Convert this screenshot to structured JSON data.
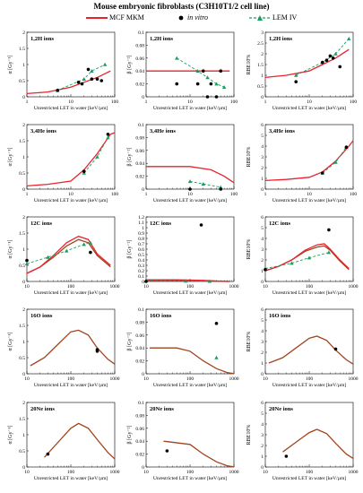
{
  "figure": {
    "title": "Mouse embryonic fibroblasts (C3H10T1/2 cell line)",
    "legend": {
      "mkm": "MCF MKM",
      "invitro": "in vitro",
      "lem": "LEM IV"
    },
    "colors": {
      "mkm": "#e8232e",
      "lem": "#1a9e60",
      "invitro": "#000000",
      "brown": "#a0451e"
    },
    "xlabel": "Unrestricted LET in water [keV/µm]",
    "ylabels": {
      "alpha": "α [Gy⁻¹]",
      "beta": "β [Gy⁻²]",
      "rbe": "RBE10%"
    }
  },
  "chart_data": [
    {
      "type": "line",
      "row": 0,
      "col": 0,
      "ion": "1,2H ions",
      "xlim": [
        1,
        100
      ],
      "ylim": [
        0,
        2
      ],
      "yticks": [
        0,
        0.5,
        1,
        1.5,
        2
      ],
      "xlog": true,
      "mkm": [
        [
          1,
          0.1
        ],
        [
          3,
          0.15
        ],
        [
          10,
          0.3
        ],
        [
          20,
          0.45
        ],
        [
          40,
          0.6
        ],
        [
          80,
          0.8
        ]
      ],
      "lem": [
        [
          5,
          0.2
        ],
        [
          20,
          0.55
        ],
        [
          30,
          0.8
        ],
        [
          60,
          1.0
        ]
      ],
      "invitro": [
        [
          5,
          0.2
        ],
        [
          15,
          0.45
        ],
        [
          18,
          0.4
        ],
        [
          25,
          0.85
        ],
        [
          30,
          0.55
        ],
        [
          40,
          0.55
        ],
        [
          50,
          0.5
        ]
      ]
    },
    {
      "type": "line",
      "row": 0,
      "col": 1,
      "ion": "1,2H ions",
      "xlim": [
        1,
        100
      ],
      "ylim": [
        0,
        0.1
      ],
      "yticks": [
        0,
        0.02,
        0.04,
        0.06,
        0.08,
        0.1
      ],
      "xlog": true,
      "mkm": [
        [
          1,
          0.04
        ],
        [
          10,
          0.04
        ],
        [
          80,
          0.04
        ]
      ],
      "lem": [
        [
          5,
          0.06
        ],
        [
          15,
          0.04
        ],
        [
          25,
          0.03
        ],
        [
          40,
          0.02
        ],
        [
          60,
          0.015
        ]
      ],
      "invitro": [
        [
          5,
          0.02
        ],
        [
          15,
          0.02
        ],
        [
          20,
          0.04
        ],
        [
          25,
          0.0
        ],
        [
          30,
          0.02
        ],
        [
          40,
          0.0
        ],
        [
          50,
          0.04
        ]
      ]
    },
    {
      "type": "line",
      "row": 0,
      "col": 2,
      "ion": "1,2H ions",
      "xlim": [
        1,
        100
      ],
      "ylim": [
        0,
        3
      ],
      "yticks": [
        0,
        0.5,
        1,
        1.5,
        2,
        2.5,
        3
      ],
      "xlog": true,
      "mkm": [
        [
          1,
          0.9
        ],
        [
          3,
          1.0
        ],
        [
          10,
          1.2
        ],
        [
          20,
          1.5
        ],
        [
          40,
          1.8
        ],
        [
          80,
          2.2
        ]
      ],
      "lem": [
        [
          5,
          1.0
        ],
        [
          20,
          1.6
        ],
        [
          40,
          2.0
        ],
        [
          80,
          2.7
        ]
      ],
      "invitro": [
        [
          5,
          0.7
        ],
        [
          20,
          1.6
        ],
        [
          25,
          1.7
        ],
        [
          30,
          1.9
        ],
        [
          35,
          1.8
        ],
        [
          50,
          1.4
        ]
      ]
    },
    {
      "type": "line",
      "row": 1,
      "col": 0,
      "ion": "3,4He ions",
      "xlim": [
        1,
        100
      ],
      "ylim": [
        0,
        2
      ],
      "yticks": [
        0,
        0.5,
        1,
        1.5,
        2
      ],
      "xlog": true,
      "mkm": [
        [
          1,
          0.1
        ],
        [
          3,
          0.15
        ],
        [
          10,
          0.25
        ],
        [
          20,
          0.6
        ],
        [
          40,
          1.1
        ],
        [
          80,
          1.7
        ],
        [
          100,
          1.75
        ]
      ],
      "lem": [
        [
          20,
          0.5
        ],
        [
          40,
          1.0
        ],
        [
          70,
          1.6
        ]
      ],
      "invitro": [
        [
          20,
          0.55
        ],
        [
          70,
          1.7
        ]
      ]
    },
    {
      "type": "line",
      "row": 1,
      "col": 1,
      "ion": "3,4He ions",
      "xlim": [
        1,
        100
      ],
      "ylim": [
        0,
        0.1
      ],
      "yticks": [
        0,
        0.02,
        0.04,
        0.06,
        0.08,
        0.1
      ],
      "xlog": true,
      "mkm": [
        [
          1,
          0.035
        ],
        [
          10,
          0.035
        ],
        [
          30,
          0.03
        ],
        [
          60,
          0.02
        ],
        [
          100,
          0.01
        ]
      ],
      "lem": [
        [
          10,
          0.012
        ],
        [
          20,
          0.008
        ],
        [
          50,
          0.003
        ]
      ],
      "invitro": [
        [
          10,
          0.0
        ],
        [
          50,
          0.0
        ]
      ]
    },
    {
      "type": "line",
      "row": 1,
      "col": 2,
      "ion": "3,4He ions",
      "xlim": [
        1,
        100
      ],
      "ylim": [
        0,
        6
      ],
      "yticks": [
        0,
        1,
        2,
        3,
        4,
        5,
        6
      ],
      "xlog": true,
      "mkm": [
        [
          1,
          0.8
        ],
        [
          3,
          0.9
        ],
        [
          10,
          1.1
        ],
        [
          20,
          1.6
        ],
        [
          40,
          2.6
        ],
        [
          80,
          4.0
        ],
        [
          100,
          4.5
        ]
      ],
      "lem": [
        [
          20,
          1.5
        ],
        [
          40,
          2.5
        ],
        [
          70,
          3.9
        ]
      ],
      "invitro": [
        [
          20,
          1.5
        ],
        [
          70,
          3.9
        ]
      ]
    },
    {
      "type": "line",
      "row": 2,
      "col": 0,
      "ion": "12C ions",
      "xlim": [
        10,
        1000
      ],
      "ylim": [
        0,
        2
      ],
      "yticks": [
        0,
        0.5,
        1,
        1.5,
        2
      ],
      "xlog": true,
      "mkm": [
        [
          10,
          0.25
        ],
        [
          20,
          0.45
        ],
        [
          40,
          0.8
        ],
        [
          80,
          1.2
        ],
        [
          150,
          1.4
        ],
        [
          250,
          1.3
        ],
        [
          400,
          0.85
        ],
        [
          800,
          0.5
        ]
      ],
      "mkm2": [
        [
          10,
          0.25
        ],
        [
          20,
          0.45
        ],
        [
          40,
          0.75
        ],
        [
          80,
          1.1
        ],
        [
          150,
          1.3
        ],
        [
          250,
          1.2
        ],
        [
          400,
          0.8
        ],
        [
          800,
          0.45
        ]
      ],
      "lem": [
        [
          10,
          0.55
        ],
        [
          30,
          0.75
        ],
        [
          80,
          0.95
        ],
        [
          200,
          1.15
        ],
        [
          280,
          1.2
        ]
      ],
      "invitro": [
        [
          10,
          0.65
        ],
        [
          280,
          0.9
        ]
      ]
    },
    {
      "type": "line",
      "row": 2,
      "col": 1,
      "ion": "12C ions",
      "xlim": [
        10,
        1000
      ],
      "ylim": [
        0,
        1.2
      ],
      "yticks": [
        0,
        0.1,
        0.2,
        0.3,
        0.4,
        0.5,
        0.6,
        0.7,
        0.8,
        0.9,
        1,
        1.1,
        1.2
      ],
      "xlog": true,
      "mkm": [
        [
          10,
          0.03
        ],
        [
          50,
          0.03
        ],
        [
          200,
          0.02
        ],
        [
          500,
          0.005
        ],
        [
          800,
          0.0
        ]
      ],
      "mkm2": [
        [
          10,
          0.02
        ],
        [
          50,
          0.02
        ],
        [
          200,
          0.01
        ],
        [
          500,
          0.003
        ],
        [
          800,
          0.0
        ]
      ],
      "lem": [
        [
          10,
          0.02
        ],
        [
          80,
          0.01
        ],
        [
          280,
          0.005
        ]
      ],
      "invitro": [
        [
          10,
          0.0
        ],
        [
          180,
          1.05
        ]
      ]
    },
    {
      "type": "line",
      "row": 2,
      "col": 2,
      "ion": "12C ions",
      "xlim": [
        10,
        1000
      ],
      "ylim": [
        0,
        6
      ],
      "yticks": [
        0,
        1,
        2,
        3,
        4,
        5,
        6
      ],
      "xlog": true,
      "mkm": [
        [
          10,
          1.0
        ],
        [
          20,
          1.4
        ],
        [
          40,
          2.0
        ],
        [
          80,
          2.9
        ],
        [
          150,
          3.4
        ],
        [
          220,
          3.5
        ],
        [
          300,
          3.0
        ],
        [
          500,
          2.0
        ],
        [
          800,
          1.2
        ]
      ],
      "mkm2": [
        [
          10,
          1.0
        ],
        [
          20,
          1.4
        ],
        [
          40,
          2.0
        ],
        [
          80,
          2.8
        ],
        [
          150,
          3.2
        ],
        [
          220,
          3.3
        ],
        [
          300,
          2.9
        ],
        [
          500,
          1.9
        ],
        [
          800,
          1.1
        ]
      ],
      "lem": [
        [
          10,
          1.2
        ],
        [
          40,
          1.7
        ],
        [
          100,
          2.2
        ],
        [
          280,
          2.7
        ]
      ],
      "invitro": [
        [
          10,
          1.1
        ],
        [
          280,
          4.8
        ]
      ]
    },
    {
      "type": "line",
      "row": 3,
      "col": 0,
      "ion": "16O ions",
      "xlim": [
        10,
        1000
      ],
      "ylim": [
        0,
        2
      ],
      "yticks": [
        0,
        0.5,
        1,
        1.5,
        2
      ],
      "xlog": true,
      "mkm2": [
        [
          12,
          0.25
        ],
        [
          25,
          0.5
        ],
        [
          50,
          0.9
        ],
        [
          100,
          1.3
        ],
        [
          150,
          1.35
        ],
        [
          250,
          1.2
        ],
        [
          400,
          0.8
        ],
        [
          700,
          0.45
        ],
        [
          1000,
          0.3
        ]
      ],
      "invitro": [
        [
          400,
          0.75
        ],
        [
          400,
          0.7
        ]
      ]
    },
    {
      "type": "line",
      "row": 3,
      "col": 1,
      "ion": "16O ions",
      "xlim": [
        10,
        1000
      ],
      "ylim": [
        0,
        0.1
      ],
      "yticks": [
        0,
        0.02,
        0.04,
        0.06,
        0.08,
        0.1
      ],
      "xlog": true,
      "mkm2": [
        [
          12,
          0.04
        ],
        [
          50,
          0.04
        ],
        [
          100,
          0.035
        ],
        [
          200,
          0.02
        ],
        [
          400,
          0.008
        ],
        [
          700,
          0.002
        ],
        [
          1000,
          0.0
        ]
      ],
      "lem": [
        [
          400,
          0.025
        ]
      ],
      "invitro": [
        [
          400,
          0.078
        ]
      ]
    },
    {
      "type": "line",
      "row": 3,
      "col": 2,
      "ion": "16O ions",
      "xlim": [
        10,
        1000
      ],
      "ylim": [
        0,
        6
      ],
      "yticks": [
        0,
        1,
        2,
        3,
        4,
        5,
        6
      ],
      "xlog": true,
      "mkm2": [
        [
          12,
          1.0
        ],
        [
          25,
          1.5
        ],
        [
          50,
          2.4
        ],
        [
          100,
          3.3
        ],
        [
          150,
          3.5
        ],
        [
          250,
          3.1
        ],
        [
          400,
          2.2
        ],
        [
          700,
          1.3
        ],
        [
          1000,
          0.9
        ]
      ],
      "invitro": [
        [
          400,
          2.3
        ]
      ]
    },
    {
      "type": "line",
      "row": 4,
      "col": 0,
      "ion": "20Ne ions",
      "xlim": [
        10,
        1000
      ],
      "ylim": [
        0,
        2
      ],
      "yticks": [
        0,
        0.5,
        1,
        1.5,
        2
      ],
      "xlog": true,
      "mkm2": [
        [
          25,
          0.3
        ],
        [
          50,
          0.75
        ],
        [
          100,
          1.2
        ],
        [
          150,
          1.35
        ],
        [
          250,
          1.2
        ],
        [
          400,
          0.85
        ],
        [
          700,
          0.45
        ],
        [
          1000,
          0.25
        ]
      ],
      "invitro": [
        [
          30,
          0.4
        ]
      ]
    },
    {
      "type": "line",
      "row": 4,
      "col": 1,
      "ion": "20Ne ions",
      "xlim": [
        10,
        1000
      ],
      "ylim": [
        0,
        0.1
      ],
      "yticks": [
        0,
        0.02,
        0.04,
        0.06,
        0.08,
        0.1
      ],
      "xlog": true,
      "mkm2": [
        [
          25,
          0.04
        ],
        [
          100,
          0.035
        ],
        [
          200,
          0.02
        ],
        [
          400,
          0.008
        ],
        [
          700,
          0.002
        ],
        [
          1000,
          0.0
        ]
      ],
      "invitro": [
        [
          30,
          0.025
        ]
      ]
    },
    {
      "type": "line",
      "row": 4,
      "col": 2,
      "ion": "20Ne ions",
      "xlim": [
        10,
        1000
      ],
      "ylim": [
        0,
        6
      ],
      "yticks": [
        0,
        1,
        2,
        3,
        4,
        5,
        6
      ],
      "xlog": true,
      "mkm2": [
        [
          25,
          1.4
        ],
        [
          50,
          2.3
        ],
        [
          100,
          3.2
        ],
        [
          150,
          3.5
        ],
        [
          250,
          3.1
        ],
        [
          400,
          2.2
        ],
        [
          700,
          1.2
        ],
        [
          1000,
          0.8
        ]
      ],
      "invitro": [
        [
          30,
          1.0
        ]
      ]
    }
  ]
}
